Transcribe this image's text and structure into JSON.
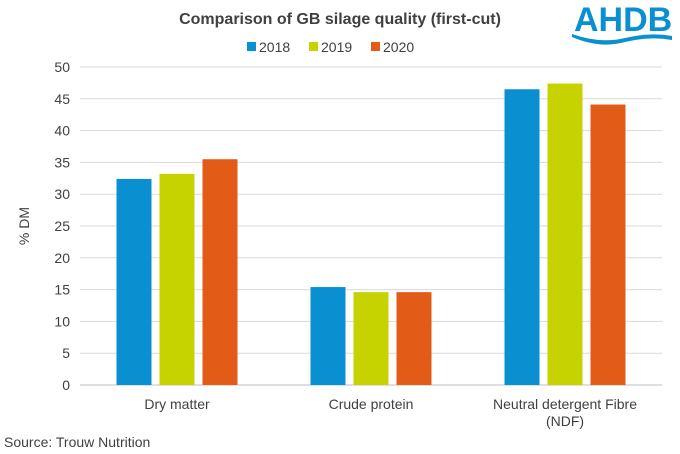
{
  "chart_data": {
    "type": "bar",
    "title": "Comparison of GB silage quality (first-cut)",
    "categories": [
      "Dry matter",
      "Crude protein",
      "Neutral detergent Fibre (NDF)"
    ],
    "category_lines": [
      [
        "Dry matter"
      ],
      [
        "Crude protein"
      ],
      [
        "Neutral detergent Fibre",
        "(NDF)"
      ]
    ],
    "series": [
      {
        "name": "2018",
        "color": "#0a8fd1",
        "values": [
          32.4,
          15.4,
          46.5
        ]
      },
      {
        "name": "2019",
        "color": "#c6d300",
        "values": [
          33.2,
          14.6,
          47.4
        ]
      },
      {
        "name": "2020",
        "color": "#e25b17",
        "values": [
          35.5,
          14.6,
          44.1
        ]
      }
    ],
    "ylabel": "% DM",
    "xlabel": "",
    "ylim": [
      0,
      50
    ],
    "yticks": [
      0,
      5,
      10,
      15,
      20,
      25,
      30,
      35,
      40,
      45,
      50
    ],
    "grid": true,
    "legend_position": "top-center"
  },
  "source": "Source: Trouw  Nutrition",
  "logo": {
    "text": "AHDB",
    "color": "#0a8fd1"
  }
}
